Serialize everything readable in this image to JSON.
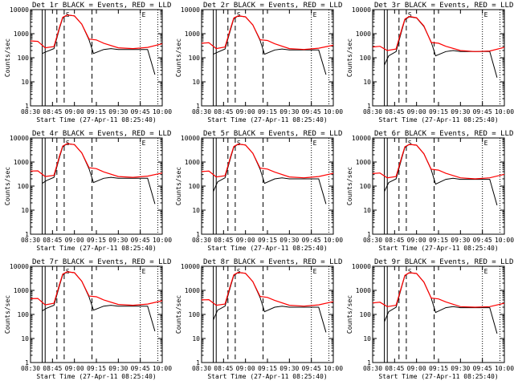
{
  "chart_data": {
    "type": "line",
    "scale_y": "log",
    "grid": false,
    "ylim": [
      1,
      10000
    ],
    "xlim": [
      "08:30",
      "10:00"
    ],
    "xticks": [
      "08:30",
      "08:45",
      "09:00",
      "09:15",
      "09:30",
      "09:45",
      "10:00"
    ],
    "yticks": [
      "1",
      "10",
      "100",
      "1000",
      "10000"
    ],
    "ylabel": "Counts/sec",
    "xlabel": "Start Time (27-Apr-11 08:25:40)",
    "colors": {
      "events": "#000000",
      "lld": "#ff0000",
      "frame": "#000000"
    },
    "markers": [
      {
        "time": "08:38",
        "style": "solid",
        "label": ""
      },
      {
        "time": "08:40",
        "style": "solid",
        "label": ""
      },
      {
        "time": "08:48",
        "style": "dashed",
        "label": ""
      },
      {
        "time": "08:53",
        "style": "dashed",
        "label": "S"
      },
      {
        "time": "09:12",
        "style": "dashed",
        "label": ""
      },
      {
        "time": "09:45",
        "style": "dotted",
        "label": "E"
      },
      {
        "time": "09:57",
        "style": "dotted",
        "label": ""
      }
    ],
    "panels": [
      {
        "title": "Det 1r BLACK = Events, RED = LLD",
        "series": [
          {
            "name": "BLACK = Events",
            "x": [
              "08:38",
              "08:41",
              "08:46",
              "08:50",
              "08:52",
              "08:55",
              "09:00",
              "09:05",
              "09:10",
              "09:13",
              "09:20",
              "09:25",
              "09:30",
              "09:40",
              "09:50",
              "09:55"
            ],
            "y": [
              150,
              180,
              240,
              1800,
              4500,
              6000,
              5500,
              2500,
              550,
              150,
              220,
              240,
              220,
              220,
              220,
              20
            ]
          },
          {
            "name": "RED = LLD",
            "x": [
              "08:30",
              "08:35",
              "08:40",
              "08:46",
              "08:50",
              "08:52",
              "08:55",
              "09:00",
              "09:05",
              "09:10",
              "09:15",
              "09:20",
              "09:30",
              "09:40",
              "09:50",
              "10:00"
            ],
            "y": [
              500,
              480,
              260,
              290,
              2000,
              4800,
              6000,
              5500,
              2500,
              600,
              550,
              400,
              260,
              240,
              270,
              380
            ]
          }
        ]
      },
      {
        "title": "Det 2r BLACK = Events, RED = LLD",
        "series": [
          {
            "name": "BLACK = Events",
            "x": [
              "08:38",
              "08:41",
              "08:46",
              "08:50",
              "08:52",
              "08:55",
              "09:00",
              "09:05",
              "09:10",
              "09:13",
              "09:20",
              "09:25",
              "09:30",
              "09:40",
              "09:50",
              "09:55"
            ],
            "y": [
              140,
              170,
              230,
              1600,
              4200,
              5500,
              5000,
              2300,
              520,
              140,
              210,
              230,
              210,
              210,
              210,
              20
            ]
          },
          {
            "name": "RED = LLD",
            "x": [
              "08:30",
              "08:35",
              "08:40",
              "08:46",
              "08:50",
              "08:52",
              "08:55",
              "09:00",
              "09:05",
              "09:10",
              "09:15",
              "09:20",
              "09:30",
              "09:40",
              "09:50",
              "10:00"
            ],
            "y": [
              400,
              420,
              240,
              280,
              1800,
              4500,
              5500,
              5000,
              2300,
              560,
              520,
              380,
              240,
              220,
              250,
              330
            ]
          }
        ]
      },
      {
        "title": "Det 3r BLACK = Events, RED = LLD",
        "series": [
          {
            "name": "BLACK = Events",
            "x": [
              "08:38",
              "08:41",
              "08:46",
              "08:50",
              "08:52",
              "08:55",
              "09:00",
              "09:05",
              "09:10",
              "09:13",
              "09:20",
              "09:25",
              "09:30",
              "09:40",
              "09:50",
              "09:55"
            ],
            "y": [
              50,
              120,
              180,
              1400,
              3800,
              5000,
              4500,
              2000,
              450,
              120,
              180,
              200,
              180,
              180,
              180,
              15
            ]
          },
          {
            "name": "RED = LLD",
            "x": [
              "08:30",
              "08:35",
              "08:40",
              "08:46",
              "08:50",
              "08:52",
              "08:55",
              "09:00",
              "09:05",
              "09:10",
              "09:15",
              "09:20",
              "09:30",
              "09:40",
              "09:50",
              "10:00"
            ],
            "y": [
              280,
              300,
              200,
              230,
              1600,
              4000,
              5200,
              4600,
              2100,
              430,
              400,
              300,
              200,
              180,
              190,
              270
            ]
          }
        ]
      },
      {
        "title": "Det 4r BLACK = Events, RED = LLD",
        "series": [
          {
            "name": "BLACK = Events",
            "x": [
              "08:38",
              "08:41",
              "08:46",
              "08:50",
              "08:52",
              "08:55",
              "09:00",
              "09:05",
              "09:10",
              "09:13",
              "09:20",
              "09:25",
              "09:30",
              "09:40",
              "09:50",
              "09:55"
            ],
            "y": [
              130,
              170,
              230,
              1700,
              4300,
              5800,
              5300,
              2400,
              520,
              140,
              210,
              230,
              210,
              210,
              210,
              18
            ]
          },
          {
            "name": "RED = LLD",
            "x": [
              "08:30",
              "08:35",
              "08:40",
              "08:46",
              "08:50",
              "08:52",
              "08:55",
              "09:00",
              "09:05",
              "09:10",
              "09:15",
              "09:20",
              "09:30",
              "09:40",
              "09:50",
              "10:00"
            ],
            "y": [
              420,
              430,
              250,
              280,
              1900,
              4600,
              5800,
              5300,
              2400,
              580,
              530,
              390,
              250,
              230,
              260,
              350
            ]
          }
        ]
      },
      {
        "title": "Det 5r BLACK = Events, RED = LLD",
        "series": [
          {
            "name": "BLACK = Events",
            "x": [
              "08:38",
              "08:41",
              "08:46",
              "08:50",
              "08:52",
              "08:55",
              "09:00",
              "09:05",
              "09:10",
              "09:13",
              "09:20",
              "09:25",
              "09:30",
              "09:40",
              "09:50",
              "09:55"
            ],
            "y": [
              60,
              150,
              220,
              1600,
              4100,
              5600,
              5100,
              2300,
              500,
              130,
              200,
              220,
              200,
              200,
              200,
              18
            ]
          },
          {
            "name": "RED = LLD",
            "x": [
              "08:30",
              "08:35",
              "08:40",
              "08:46",
              "08:50",
              "08:52",
              "08:55",
              "09:00",
              "09:05",
              "09:10",
              "09:15",
              "09:20",
              "09:30",
              "09:40",
              "09:50",
              "10:00"
            ],
            "y": [
              400,
              420,
              240,
              270,
              1800,
              4400,
              5600,
              5100,
              2300,
              560,
              510,
              380,
              240,
              220,
              250,
              340
            ]
          }
        ]
      },
      {
        "title": "Det 6r BLACK = Events, RED = LLD",
        "series": [
          {
            "name": "BLACK = Events",
            "x": [
              "08:38",
              "08:41",
              "08:46",
              "08:50",
              "08:52",
              "08:55",
              "09:00",
              "09:05",
              "09:10",
              "09:13",
              "09:20",
              "09:25",
              "09:30",
              "09:40",
              "09:50",
              "09:55"
            ],
            "y": [
              60,
              140,
              200,
              1500,
              4000,
              5400,
              5000,
              2200,
              480,
              120,
              190,
              210,
              190,
              190,
              190,
              16
            ]
          },
          {
            "name": "RED = LLD",
            "x": [
              "08:30",
              "08:35",
              "08:40",
              "08:46",
              "08:50",
              "08:52",
              "08:55",
              "09:00",
              "09:05",
              "09:10",
              "09:15",
              "09:20",
              "09:30",
              "09:40",
              "09:50",
              "10:00"
            ],
            "y": [
              330,
              350,
              220,
              250,
              1700,
              4300,
              5400,
              5000,
              2200,
              500,
              460,
              340,
              220,
              200,
              220,
              310
            ]
          }
        ]
      },
      {
        "title": "Det 7r BLACK = Events, RED = LLD",
        "series": [
          {
            "name": "BLACK = Events",
            "x": [
              "08:38",
              "08:41",
              "08:46",
              "08:50",
              "08:52",
              "08:55",
              "09:00",
              "09:05",
              "09:10",
              "09:13",
              "09:20",
              "09:25",
              "09:30",
              "09:40",
              "09:50",
              "09:55"
            ],
            "y": [
              140,
              180,
              240,
              1700,
              4400,
              5900,
              5400,
              2400,
              530,
              150,
              220,
              240,
              220,
              220,
              220,
              20
            ]
          },
          {
            "name": "RED = LLD",
            "x": [
              "08:30",
              "08:35",
              "08:40",
              "08:46",
              "08:50",
              "08:52",
              "08:55",
              "09:00",
              "09:05",
              "09:10",
              "09:15",
              "09:20",
              "09:30",
              "09:40",
              "09:50",
              "10:00"
            ],
            "y": [
              450,
              460,
              250,
              290,
              1900,
              4700,
              5900,
              5400,
              2400,
              580,
              540,
              400,
              260,
              240,
              270,
              370
            ]
          }
        ]
      },
      {
        "title": "Det 8r BLACK = Events, RED = LLD",
        "series": [
          {
            "name": "BLACK = Events",
            "x": [
              "08:38",
              "08:41",
              "08:46",
              "08:50",
              "08:52",
              "08:55",
              "09:00",
              "09:05",
              "09:10",
              "09:13",
              "09:20",
              "09:25",
              "09:30",
              "09:40",
              "09:50",
              "09:55"
            ],
            "y": [
              60,
              150,
              220,
              1600,
              4100,
              5600,
              5100,
              2300,
              500,
              130,
              200,
              220,
              200,
              200,
              200,
              18
            ]
          },
          {
            "name": "RED = LLD",
            "x": [
              "08:30",
              "08:35",
              "08:40",
              "08:46",
              "08:50",
              "08:52",
              "08:55",
              "09:00",
              "09:05",
              "09:10",
              "09:15",
              "09:20",
              "09:30",
              "09:40",
              "09:50",
              "10:00"
            ],
            "y": [
              400,
              410,
              240,
              270,
              1800,
              4400,
              5600,
              5100,
              2300,
              560,
              510,
              380,
              240,
              220,
              250,
              340
            ]
          }
        ]
      },
      {
        "title": "Det 9r BLACK = Events, RED = LLD",
        "series": [
          {
            "name": "BLACK = Events",
            "x": [
              "08:38",
              "08:41",
              "08:46",
              "08:50",
              "08:52",
              "08:55",
              "09:00",
              "09:05",
              "09:10",
              "09:13",
              "09:20",
              "09:25",
              "09:30",
              "09:40",
              "09:50",
              "09:55"
            ],
            "y": [
              50,
              130,
              200,
              1500,
              4000,
              5400,
              5000,
              2200,
              480,
              120,
              190,
              210,
              190,
              190,
              190,
              16
            ]
          },
          {
            "name": "RED = LLD",
            "x": [
              "08:30",
              "08:35",
              "08:40",
              "08:46",
              "08:50",
              "08:52",
              "08:55",
              "09:00",
              "09:05",
              "09:10",
              "09:15",
              "09:20",
              "09:30",
              "09:40",
              "09:50",
              "10:00"
            ],
            "y": [
              300,
              320,
              210,
              240,
              1600,
              4200,
              5400,
              5000,
              2200,
              480,
              440,
              330,
              210,
              200,
              210,
              290
            ]
          }
        ]
      }
    ]
  }
}
